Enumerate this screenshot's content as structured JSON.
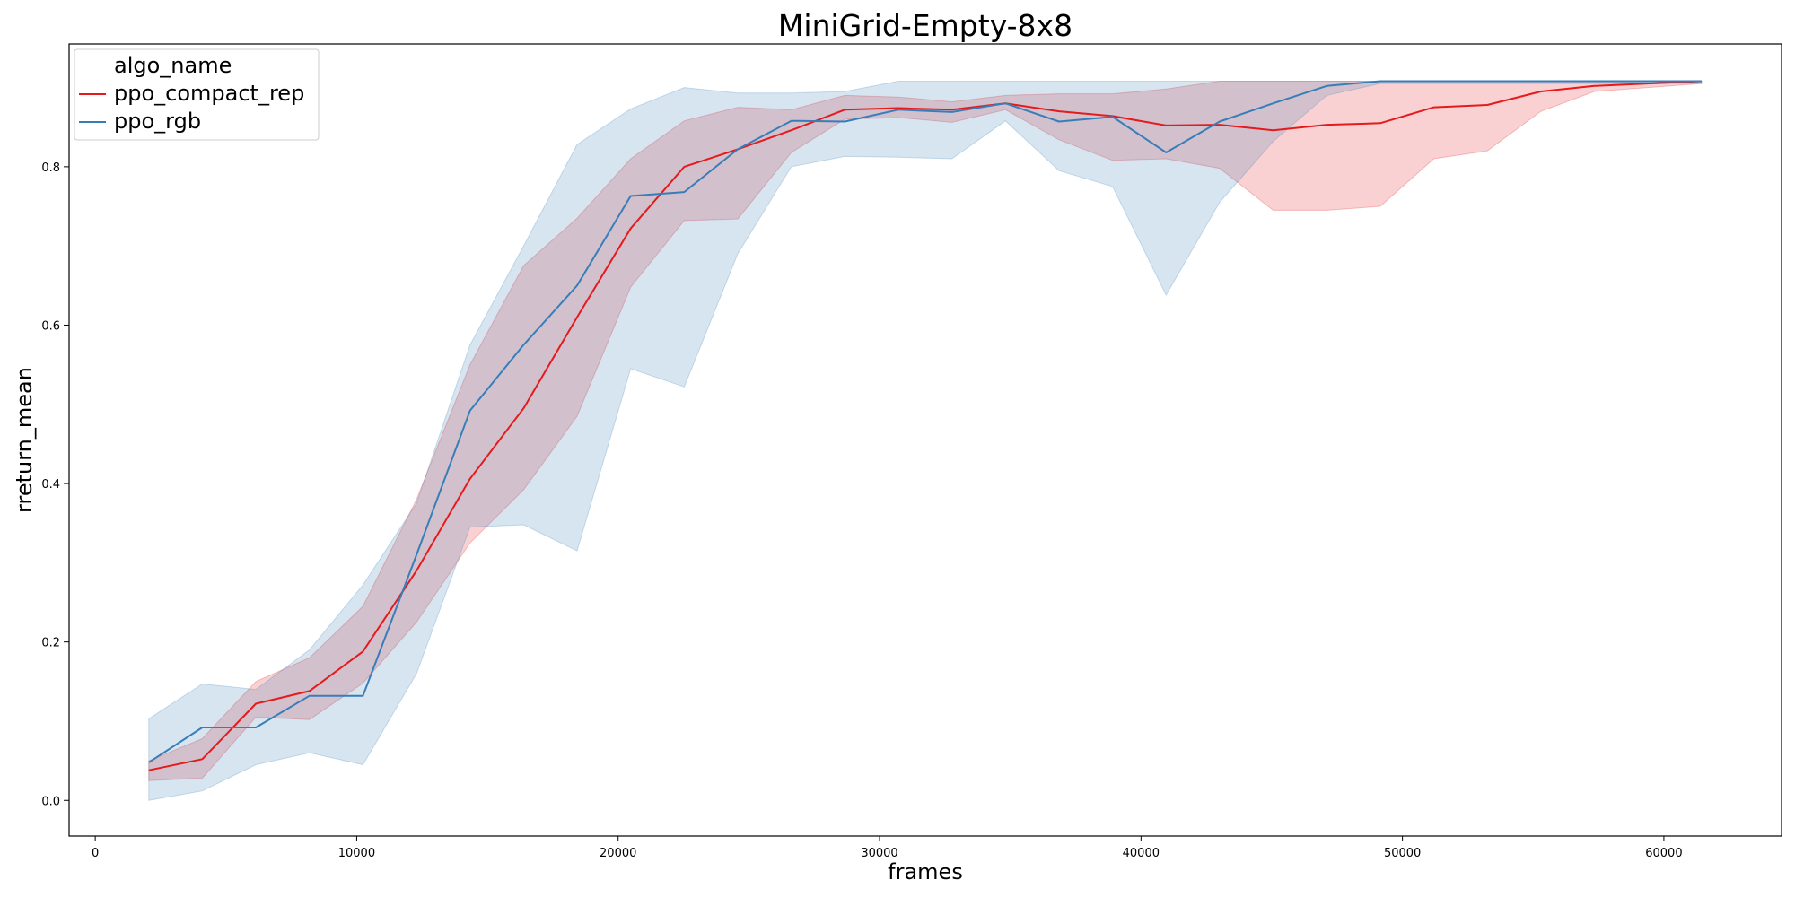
{
  "chart_data": {
    "type": "line",
    "title": "MiniGrid-Empty-8x8",
    "xlabel": "frames",
    "ylabel": "rreturn_mean",
    "xlim": [
      -1000,
      64500
    ],
    "ylim": [
      -0.045,
      0.955
    ],
    "xticks": [
      0,
      10000,
      20000,
      30000,
      40000,
      50000,
      60000
    ],
    "xtick_labels": [
      "0",
      "10000",
      "20000",
      "30000",
      "40000",
      "50000",
      "60000"
    ],
    "yticks": [
      0.0,
      0.2,
      0.4,
      0.6,
      0.8
    ],
    "ytick_labels": [
      "0.0",
      "0.2",
      "0.4",
      "0.6",
      "0.8"
    ],
    "grid": false,
    "legend": {
      "title": "algo_name",
      "placement": "top-left"
    },
    "x": [
      2048,
      4096,
      6144,
      8192,
      10240,
      12288,
      14336,
      16384,
      18432,
      20480,
      22528,
      24576,
      26624,
      28672,
      30720,
      32768,
      34816,
      36864,
      38912,
      40960,
      43008,
      45056,
      47104,
      49152,
      51200,
      53248,
      55296,
      57344,
      59392,
      61440
    ],
    "series": [
      {
        "name": "ppo_compact_rep",
        "color": "#e41a1c",
        "band_alpha": 0.2,
        "values": [
          0.038,
          0.052,
          0.122,
          0.138,
          0.188,
          0.29,
          0.406,
          0.495,
          0.61,
          0.722,
          0.8,
          0.822,
          0.846,
          0.872,
          0.874,
          0.872,
          0.88,
          0.87,
          0.864,
          0.852,
          0.853,
          0.846,
          0.853,
          0.855,
          0.875,
          0.878,
          0.895,
          0.902,
          0.905,
          0.908
        ],
        "lower": [
          0.025,
          0.028,
          0.105,
          0.102,
          0.148,
          0.225,
          0.325,
          0.392,
          0.485,
          0.648,
          0.732,
          0.734,
          0.818,
          0.86,
          0.862,
          0.856,
          0.872,
          0.834,
          0.808,
          0.81,
          0.798,
          0.745,
          0.745,
          0.75,
          0.81,
          0.82,
          0.87,
          0.895,
          0.9,
          0.905
        ],
        "upper": [
          0.05,
          0.078,
          0.15,
          0.18,
          0.245,
          0.38,
          0.55,
          0.675,
          0.735,
          0.81,
          0.858,
          0.875,
          0.872,
          0.89,
          0.888,
          0.882,
          0.89,
          0.892,
          0.892,
          0.898,
          0.908,
          0.908,
          0.908,
          0.908,
          0.908,
          0.908,
          0.908,
          0.908,
          0.908,
          0.908
        ]
      },
      {
        "name": "ppo_rgb",
        "color": "#377eb8",
        "band_alpha": 0.2,
        "values": [
          0.048,
          0.092,
          0.092,
          0.132,
          0.132,
          0.31,
          0.492,
          0.575,
          0.65,
          0.763,
          0.768,
          0.822,
          0.858,
          0.857,
          0.872,
          0.869,
          0.88,
          0.857,
          0.863,
          0.818,
          0.857,
          0.88,
          0.902,
          0.908,
          0.908,
          0.908,
          0.908,
          0.908,
          0.908,
          0.908
        ],
        "lower": [
          0.0,
          0.012,
          0.045,
          0.06,
          0.045,
          0.16,
          0.345,
          0.348,
          0.315,
          0.545,
          0.522,
          0.69,
          0.8,
          0.813,
          0.812,
          0.81,
          0.858,
          0.795,
          0.775,
          0.638,
          0.755,
          0.832,
          0.89,
          0.905,
          0.905,
          0.905,
          0.905,
          0.905,
          0.905,
          0.905
        ],
        "upper": [
          0.103,
          0.147,
          0.14,
          0.19,
          0.272,
          0.375,
          0.575,
          0.7,
          0.828,
          0.873,
          0.9,
          0.893,
          0.893,
          0.895,
          0.908,
          0.908,
          0.908,
          0.908,
          0.908,
          0.908,
          0.908,
          0.908,
          0.908,
          0.908,
          0.908,
          0.908,
          0.908,
          0.908,
          0.908,
          0.908
        ]
      }
    ]
  }
}
